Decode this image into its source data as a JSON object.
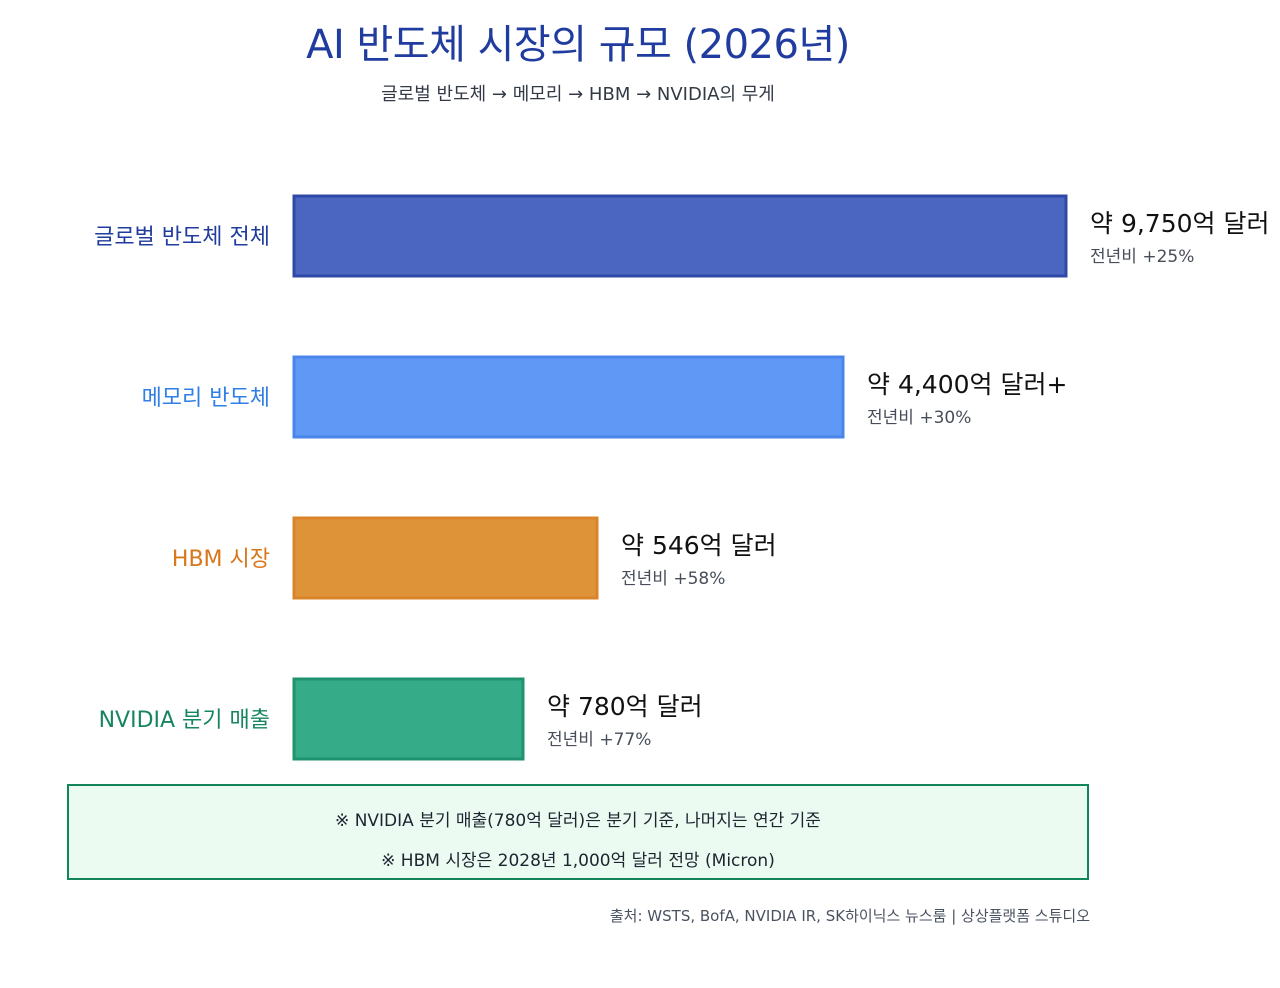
{
  "header": {
    "title": "AI 반도체 시장의 규모 (2026년)",
    "subtitle": "글로벌 반도체 → 메모리 → HBM → NVIDIA의 무게"
  },
  "chart_data": {
    "type": "bar",
    "orientation": "horizontal",
    "title": "AI 반도체 시장의 규모 (2026년)",
    "subtitle": "글로벌 반도체 → 메모리 → HBM → NVIDIA의 무게",
    "unit": "억 달러",
    "categories": [
      "글로벌 반도체 전체",
      "메모리 반도체",
      "HBM 시장",
      "NVIDIA 분기 매출"
    ],
    "values": [
      9750,
      4400,
      546,
      780
    ],
    "value_labels": [
      "약 9,750억 달러",
      "약 4,400억 달러+",
      "약 546억 달러",
      "약 780억 달러"
    ],
    "growth_labels": [
      "전년비 +25%",
      "전년비 +30%",
      "전년비 +58%",
      "전년비 +77%"
    ],
    "bar_colors": [
      "#4a66c0",
      "#6098f5",
      "#df9338",
      "#36ab87"
    ],
    "border_colors": [
      "#2f49a8",
      "#4a85ea",
      "#d9832a",
      "#1f9370"
    ],
    "label_colors": [
      "#1f3c9e",
      "#2f7fe6",
      "#d9761a",
      "#17865e"
    ],
    "scale_note": "bars are not drawn to a linear scale"
  },
  "notes": {
    "line1": "※ NVIDIA 분기 매출(780억 달러)은 분기 기준, 나머지는 연간 기준",
    "line2": "※ HBM 시장은 2028년 1,000억 달러 전망 (Micron)"
  },
  "source": "출처: WSTS, BofA, NVIDIA IR, SK하이닉스 뉴스룸  |  상상플랫폼 스튜디오",
  "colors": {
    "title": "#1f3c9e",
    "note_border": "#12855a",
    "note_bg": "#ecfbf2"
  }
}
